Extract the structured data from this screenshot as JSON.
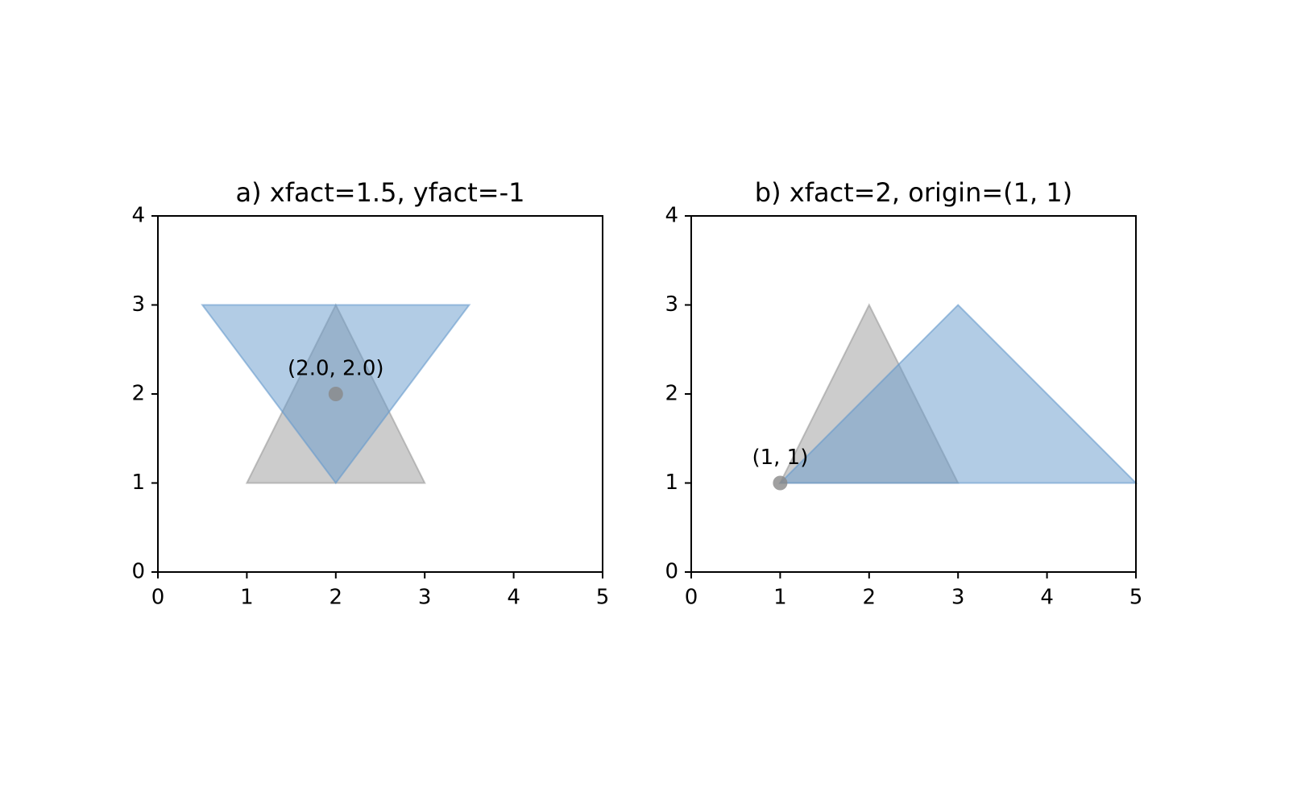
{
  "chart_data": [
    {
      "type": "polygon",
      "title": "a) xfact=1.5, yfact=-1",
      "xlim": [
        0,
        5
      ],
      "ylim": [
        0,
        4
      ],
      "xticks": [
        0,
        1,
        2,
        3,
        4,
        5
      ],
      "yticks": [
        0,
        1,
        2,
        3,
        4
      ],
      "series": [
        {
          "color": "#999999",
          "x": [
            1,
            3,
            2
          ],
          "y": [
            1,
            1,
            3
          ]
        },
        {
          "color": "#6699cc",
          "x": [
            0.5,
            3.5,
            2
          ],
          "y": [
            3,
            3,
            1
          ]
        }
      ],
      "points": {
        "color": "#888888",
        "x": [
          2
        ],
        "y": [
          2
        ],
        "labels": [
          "(2.0, 2.0)"
        ]
      }
    },
    {
      "type": "polygon",
      "title": "b) xfact=2, origin=(1, 1)",
      "xlim": [
        0,
        5
      ],
      "ylim": [
        0,
        4
      ],
      "xticks": [
        0,
        1,
        2,
        3,
        4,
        5
      ],
      "yticks": [
        0,
        1,
        2,
        3,
        4
      ],
      "series": [
        {
          "color": "#999999",
          "x": [
            1,
            3,
            2
          ],
          "y": [
            1,
            1,
            3
          ]
        },
        {
          "color": "#6699cc",
          "x": [
            1,
            5,
            3
          ],
          "y": [
            1,
            1,
            3
          ]
        }
      ],
      "points": {
        "color": "#888888",
        "x": [
          1
        ],
        "y": [
          1
        ],
        "labels": [
          "(1, 1)"
        ]
      }
    }
  ]
}
